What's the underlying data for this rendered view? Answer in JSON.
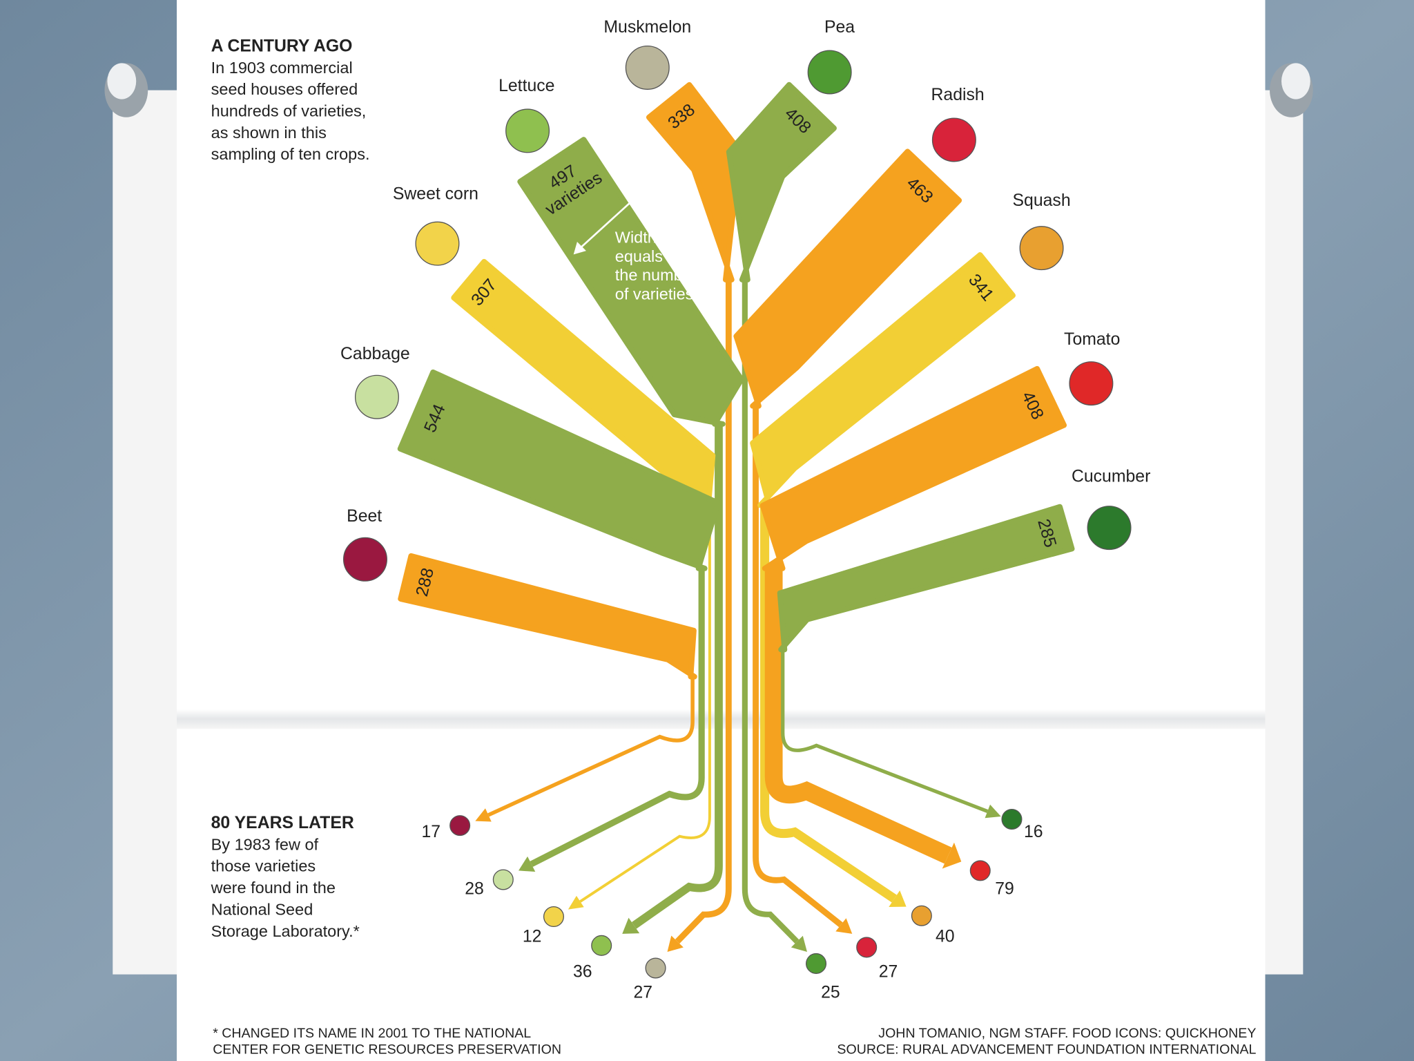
{
  "chart_data": {
    "type": "branch",
    "title": "A CENTURY AGO",
    "subtitle": [
      "In 1903 commercial",
      "seed houses offered",
      "hundreds of varieties,",
      "as shown in this",
      "sampling of ten crops."
    ],
    "bottom_title": "80 YEARS LATER",
    "bottom_subtitle": [
      "By 1983 few of",
      "those varieties",
      "were found in the",
      "National Seed",
      "Storage Laboratory.*"
    ],
    "width_note": [
      "Width",
      "equals",
      "the number",
      "of varieties"
    ],
    "unit_label": "varieties",
    "categories": [
      "Muskmelon",
      "Lettuce",
      "Sweet corn",
      "Cabbage",
      "Beet",
      "Pea",
      "Radish",
      "Squash",
      "Tomato",
      "Cucumber"
    ],
    "colors": [
      "#f5a21f",
      "#8fad4a",
      "#f2cf35",
      "#8fad4a",
      "#f5a21f",
      "#8fad4a",
      "#f5a21f",
      "#f2cf35",
      "#f5a21f",
      "#8fad4a"
    ],
    "values": [
      338,
      497,
      307,
      544,
      288,
      408,
      463,
      341,
      408,
      285
    ],
    "values_1983": [
      27,
      36,
      12,
      28,
      17,
      25,
      27,
      40,
      79,
      16
    ],
    "footnote": [
      "* CHANGED ITS NAME IN 2001 TO THE NATIONAL",
      "CENTER FOR GENETIC RESOURCES PRESERVATION"
    ],
    "credit": [
      "JOHN TOMANIO, NGM STAFF. FOOD ICONS: QUICKHONEY",
      "SOURCE: RURAL ADVANCEMENT FOUNDATION INTERNATIONAL"
    ]
  }
}
